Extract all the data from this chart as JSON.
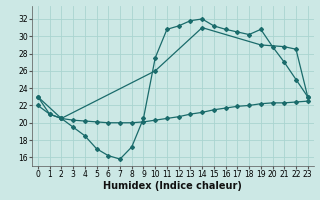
{
  "xlabel": "Humidex (Indice chaleur)",
  "bg_color": "#cce8e5",
  "grid_color": "#aad4d0",
  "line_color": "#1a6b6b",
  "xlim": [
    -0.5,
    23.5
  ],
  "ylim": [
    15,
    33.5
  ],
  "yticks": [
    16,
    18,
    20,
    22,
    24,
    26,
    28,
    30,
    32
  ],
  "xticks": [
    0,
    1,
    2,
    3,
    4,
    5,
    6,
    7,
    8,
    9,
    10,
    11,
    12,
    13,
    14,
    15,
    16,
    17,
    18,
    19,
    20,
    21,
    22,
    23
  ],
  "line1_x": [
    0,
    1,
    2,
    3,
    4,
    5,
    6,
    7,
    8,
    9,
    10,
    11,
    12,
    13,
    14,
    15,
    16,
    17,
    18,
    19,
    20,
    21,
    22,
    23
  ],
  "line1_y": [
    23,
    21,
    20.5,
    19.5,
    18.5,
    17.0,
    16.2,
    15.8,
    17.2,
    20.5,
    27.5,
    30.8,
    31.2,
    31.8,
    32.0,
    31.2,
    30.8,
    30.5,
    30.2,
    30.8,
    28.8,
    27.0,
    25.0,
    23.0
  ],
  "line2_x": [
    0,
    1,
    2,
    3,
    4,
    5,
    6,
    7,
    8,
    9,
    10,
    11,
    12,
    13,
    14,
    15,
    16,
    17,
    18,
    19,
    20,
    21,
    22,
    23
  ],
  "line2_y": [
    22.0,
    21.0,
    20.5,
    20.3,
    20.2,
    20.1,
    20.0,
    20.0,
    20.0,
    20.1,
    20.3,
    20.5,
    20.7,
    21.0,
    21.2,
    21.5,
    21.7,
    21.9,
    22.0,
    22.2,
    22.3,
    22.3,
    22.4,
    22.5
  ],
  "line3_x": [
    0,
    2,
    10,
    14,
    19,
    21,
    22,
    23
  ],
  "line3_y": [
    23.0,
    20.5,
    26.0,
    31.0,
    29.0,
    28.8,
    28.5,
    23.0
  ],
  "xlabel_fontsize": 7,
  "tick_fontsize": 5.5,
  "marker_size": 2.0,
  "linewidth": 0.9
}
